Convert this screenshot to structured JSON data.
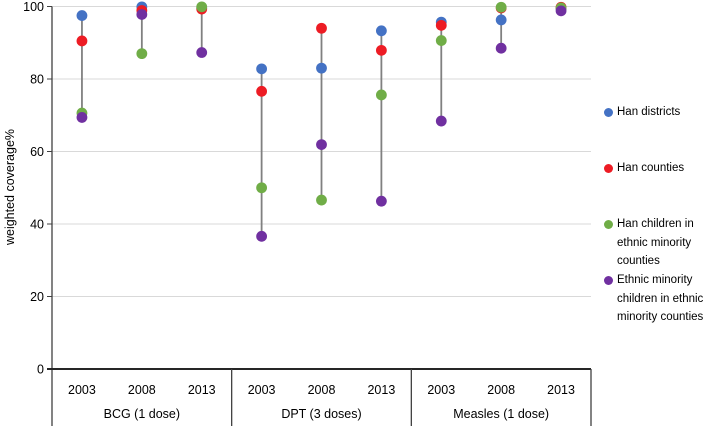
{
  "chart_data": {
    "type": "scatter",
    "title": "",
    "ylabel": "weighted coverage%",
    "xlabel": "",
    "ylim": [
      0,
      100
    ],
    "yticks": [
      0,
      20,
      40,
      60,
      80,
      100
    ],
    "grid": true,
    "legend_position": "right",
    "groups": [
      {
        "label": "BCG (1 dose)",
        "years": [
          "2003",
          "2008",
          "2013"
        ]
      },
      {
        "label": "DPT (3 doses)",
        "years": [
          "2003",
          "2008",
          "2013"
        ]
      },
      {
        "label": "Measles (1 dose)",
        "years": [
          "2003",
          "2008",
          "2013"
        ]
      }
    ],
    "series": [
      {
        "name": "Han districts",
        "color": "#4472C4",
        "values": [
          97.5,
          99.9,
          99.6,
          82.8,
          83.0,
          93.3,
          95.7,
          96.3,
          99.5
        ]
      },
      {
        "name": "Han counties",
        "color": "#ED1C24",
        "values": [
          90.5,
          98.9,
          99.3,
          76.6,
          94.0,
          87.9,
          94.8,
          99.6,
          99.8
        ]
      },
      {
        "name": "Han children in ethnic minority counties",
        "color": "#70AD47",
        "values": [
          70.6,
          87.0,
          99.9,
          50.0,
          46.6,
          75.6,
          90.6,
          99.8,
          99.6
        ]
      },
      {
        "name": "Ethnic minority children in ethnic minority counties",
        "color": "#7030A0",
        "values": [
          69.4,
          97.8,
          87.3,
          36.6,
          61.9,
          46.3,
          68.4,
          88.5,
          98.8
        ]
      }
    ],
    "colors": {
      "gridline": "#D9D9D9",
      "axis": "#262626",
      "separator": "#404040",
      "connector": "#808080",
      "text": "#000000"
    }
  }
}
